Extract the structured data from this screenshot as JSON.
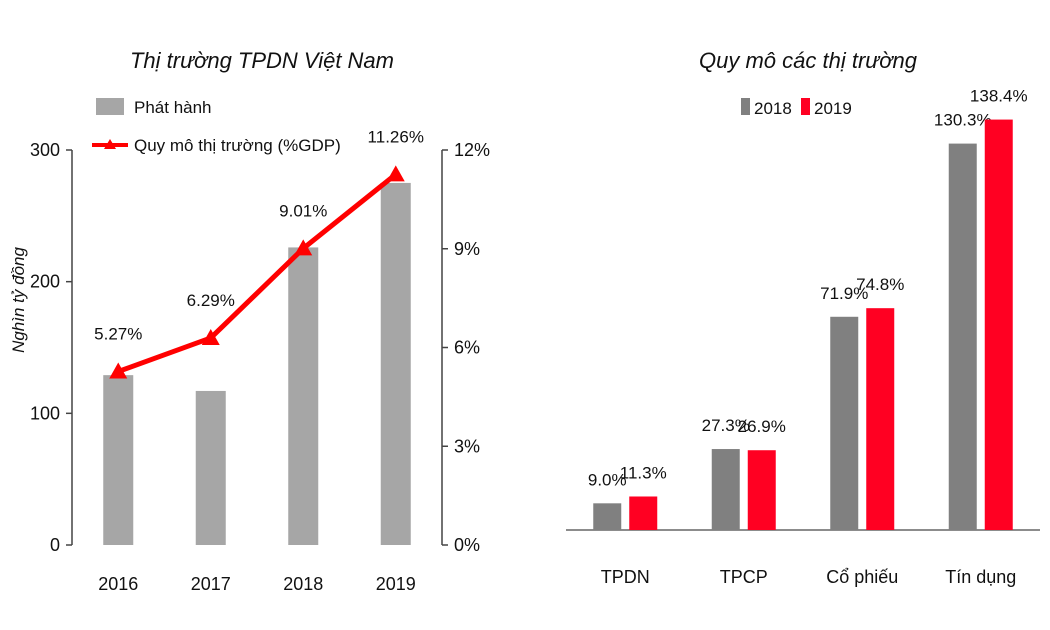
{
  "chart_data": [
    {
      "type": "bar+line",
      "title": "Thị trường TPDN Việt Nam",
      "ylabel": "Nghìn tỷ đồng",
      "categories": [
        "2016",
        "2017",
        "2018",
        "2019"
      ],
      "ylim": [
        0,
        300
      ],
      "yticks": [
        "0",
        "100",
        "200",
        "300"
      ],
      "y2lim": [
        0,
        12
      ],
      "y2ticks": [
        "0%",
        "3%",
        "6%",
        "9%",
        "12%"
      ],
      "series": [
        {
          "name": "Phát hành",
          "kind": "bar",
          "axis": "left",
          "color": "#a6a6a6",
          "values": [
            129,
            117,
            226,
            275
          ]
        },
        {
          "name": "Quy mô thị trường (%GDP)",
          "kind": "line",
          "axis": "right",
          "color": "#ff0000",
          "values": [
            5.27,
            6.29,
            9.01,
            11.26
          ],
          "labels": [
            "5.27%",
            "6.29%",
            "9.01%",
            "11.26%"
          ]
        }
      ],
      "legend_position": "top-left"
    },
    {
      "type": "bar",
      "title": "Quy mô các thị trường",
      "categories": [
        "TPDN",
        "TPCP",
        "Cổ phiếu",
        "Tín dụng"
      ],
      "ylim": [
        0,
        145
      ],
      "series": [
        {
          "name": "2018",
          "color": "#808080",
          "values": [
            9.0,
            27.3,
            71.9,
            130.3
          ],
          "labels": [
            "9.0%",
            "27.3%",
            "71.9%",
            "130.3%"
          ]
        },
        {
          "name": "2019",
          "color": "#ff0022",
          "values": [
            11.3,
            26.9,
            74.8,
            138.4
          ],
          "labels": [
            "11.3%",
            "26.9%",
            "74.8%",
            "138.4%"
          ]
        }
      ],
      "legend_position": "top"
    }
  ]
}
